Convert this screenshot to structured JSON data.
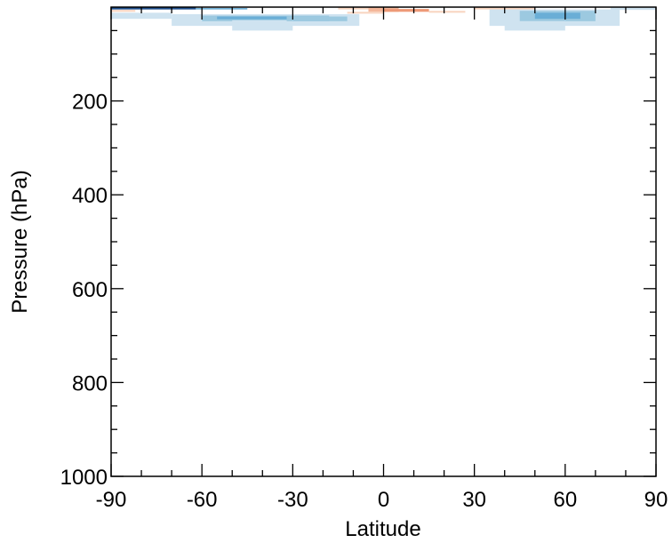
{
  "chart_data": {
    "type": "heatmap",
    "title": "",
    "xlabel": "Latitude",
    "ylabel": "Pressure (hPa)",
    "xlim": [
      -90,
      90
    ],
    "ylim": [
      1000,
      0
    ],
    "y_inverted": true,
    "grid": false,
    "x_ticks": [
      -90,
      -60,
      -30,
      0,
      30,
      60,
      90
    ],
    "y_ticks": [
      200,
      400,
      600,
      800,
      1000
    ],
    "x_minor_step": 10,
    "y_minor_step": 50,
    "colors": {
      "light_blue": "#cfe3f0",
      "mid_blue": "#9cc9e0",
      "blue": "#6aaed6",
      "dark_blue": "#1f4e8c",
      "light_orange": "#f8d6c2",
      "orange": "#f4b79a",
      "dark_orange": "#ee9a78"
    },
    "cells": [
      {
        "lat": [
          -90,
          -62
        ],
        "p": [
          0,
          5
        ],
        "color": "dark_blue"
      },
      {
        "lat": [
          -62,
          -45
        ],
        "p": [
          2,
          5
        ],
        "color": "blue"
      },
      {
        "lat": [
          -90,
          -82
        ],
        "p": [
          6,
          10
        ],
        "color": "light_orange"
      },
      {
        "lat": [
          -90,
          -70
        ],
        "p": [
          12,
          25
        ],
        "color": "light_blue"
      },
      {
        "lat": [
          -70,
          -8
        ],
        "p": [
          15,
          40
        ],
        "color": "light_blue"
      },
      {
        "lat": [
          -60,
          -18
        ],
        "p": [
          18,
          30
        ],
        "color": "mid_blue"
      },
      {
        "lat": [
          -55,
          -20
        ],
        "p": [
          20,
          26
        ],
        "color": "blue"
      },
      {
        "lat": [
          -50,
          -30
        ],
        "p": [
          28,
          50
        ],
        "color": "light_blue"
      },
      {
        "lat": [
          -32,
          -12
        ],
        "p": [
          20,
          30
        ],
        "color": "mid_blue"
      },
      {
        "lat": [
          -15,
          0
        ],
        "p": [
          0,
          5
        ],
        "color": "light_orange"
      },
      {
        "lat": [
          -5,
          5
        ],
        "p": [
          0,
          10
        ],
        "color": "orange"
      },
      {
        "lat": [
          0,
          15
        ],
        "p": [
          4,
          10
        ],
        "color": "dark_orange"
      },
      {
        "lat": [
          15,
          27
        ],
        "p": [
          8,
          12
        ],
        "color": "light_orange"
      },
      {
        "lat": [
          -12,
          0
        ],
        "p": [
          10,
          14
        ],
        "color": "light_orange"
      },
      {
        "lat": [
          30,
          50
        ],
        "p": [
          0,
          5
        ],
        "color": "light_orange"
      },
      {
        "lat": [
          35,
          78
        ],
        "p": [
          5,
          40
        ],
        "color": "light_blue"
      },
      {
        "lat": [
          45,
          70
        ],
        "p": [
          8,
          30
        ],
        "color": "mid_blue"
      },
      {
        "lat": [
          50,
          65
        ],
        "p": [
          12,
          25
        ],
        "color": "blue"
      },
      {
        "lat": [
          40,
          60
        ],
        "p": [
          30,
          50
        ],
        "color": "light_blue"
      },
      {
        "lat": [
          75,
          90
        ],
        "p": [
          0,
          6
        ],
        "color": "light_blue"
      }
    ]
  }
}
